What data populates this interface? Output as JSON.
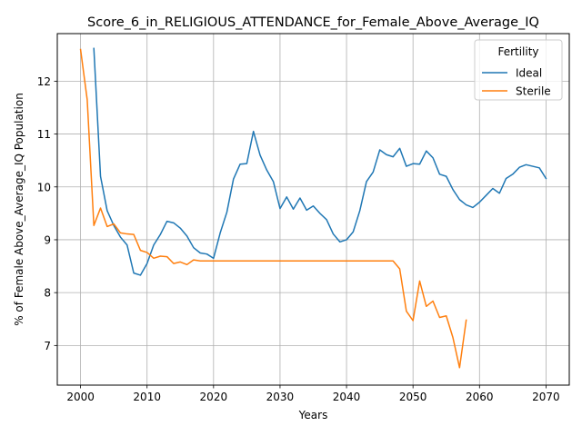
{
  "chart_data": {
    "type": "line",
    "title": "Score_6_in_RELIGIOUS_ATTENDANCE_for_Female_Above_Average_IQ",
    "xlabel": "Years",
    "ylabel": "% of Female Above_Average_IQ Population",
    "xlim": [
      1996.5,
      2073.5
    ],
    "ylim": [
      6.25,
      12.9
    ],
    "xticks": [
      2000,
      2010,
      2020,
      2030,
      2040,
      2050,
      2060,
      2070
    ],
    "yticks": [
      7,
      8,
      9,
      10,
      11,
      12
    ],
    "grid": true,
    "legend": {
      "title": "Fertility",
      "position": "top-right"
    },
    "series": [
      {
        "name": "Ideal",
        "color": "#1f77b4",
        "x": [
          2002,
          2003,
          2004,
          2005,
          2006,
          2007,
          2008,
          2009,
          2010,
          2011,
          2012,
          2013,
          2014,
          2015,
          2016,
          2017,
          2018,
          2019,
          2020,
          2021,
          2022,
          2023,
          2024,
          2025,
          2026,
          2027,
          2028,
          2029,
          2030,
          2031,
          2032,
          2033,
          2034,
          2035,
          2036,
          2037,
          2038,
          2039,
          2040,
          2041,
          2042,
          2043,
          2044,
          2045,
          2046,
          2047,
          2048,
          2049,
          2050,
          2051,
          2052,
          2053,
          2054,
          2055,
          2056,
          2057,
          2058,
          2059,
          2060,
          2061,
          2062,
          2063,
          2064,
          2065,
          2066,
          2067,
          2068,
          2069,
          2070
        ],
        "y": [
          12.62,
          10.2,
          9.55,
          9.27,
          9.05,
          8.9,
          8.37,
          8.33,
          8.55,
          8.9,
          9.1,
          9.35,
          9.32,
          9.22,
          9.07,
          8.85,
          8.75,
          8.73,
          8.65,
          9.13,
          9.52,
          10.15,
          10.43,
          10.44,
          11.05,
          10.6,
          10.32,
          10.1,
          9.59,
          9.81,
          9.58,
          9.79,
          9.56,
          9.64,
          9.5,
          9.38,
          9.11,
          8.96,
          9.0,
          9.15,
          9.55,
          10.1,
          10.28,
          10.7,
          10.61,
          10.57,
          10.73,
          10.39,
          10.44,
          10.43,
          10.68,
          10.55,
          10.24,
          10.2,
          9.95,
          9.76,
          9.66,
          9.61,
          9.71,
          9.84,
          9.97,
          9.88,
          10.16,
          10.24,
          10.37,
          10.42,
          10.39,
          10.36,
          10.16
        ]
      },
      {
        "name": "Sterile",
        "color": "#ff7f0e",
        "x": [
          2000,
          2001,
          2002,
          2003,
          2004,
          2005,
          2006,
          2007,
          2008,
          2009,
          2010,
          2011,
          2012,
          2013,
          2014,
          2015,
          2016,
          2017,
          2018,
          2019,
          2020,
          2021,
          2022,
          2023,
          2024,
          2025,
          2026,
          2027,
          2028,
          2029,
          2030,
          2031,
          2032,
          2033,
          2034,
          2035,
          2036,
          2037,
          2038,
          2039,
          2040,
          2041,
          2042,
          2043,
          2044,
          2045,
          2046,
          2047,
          2048,
          2049,
          2050,
          2051,
          2052,
          2053,
          2054,
          2055,
          2056,
          2057,
          2058
        ],
        "y": [
          12.6,
          11.65,
          9.27,
          9.6,
          9.25,
          9.3,
          9.13,
          9.11,
          9.1,
          8.8,
          8.76,
          8.65,
          8.69,
          8.68,
          8.55,
          8.58,
          8.53,
          8.62,
          8.6,
          8.6,
          8.6,
          8.6,
          8.6,
          8.6,
          8.6,
          8.6,
          8.6,
          8.6,
          8.6,
          8.6,
          8.6,
          8.6,
          8.6,
          8.6,
          8.6,
          8.6,
          8.6,
          8.6,
          8.6,
          8.6,
          8.6,
          8.6,
          8.6,
          8.6,
          8.6,
          8.6,
          8.6,
          8.6,
          8.45,
          7.65,
          7.47,
          8.22,
          7.74,
          7.84,
          7.53,
          7.56,
          7.15,
          6.58,
          7.48
        ]
      }
    ]
  }
}
